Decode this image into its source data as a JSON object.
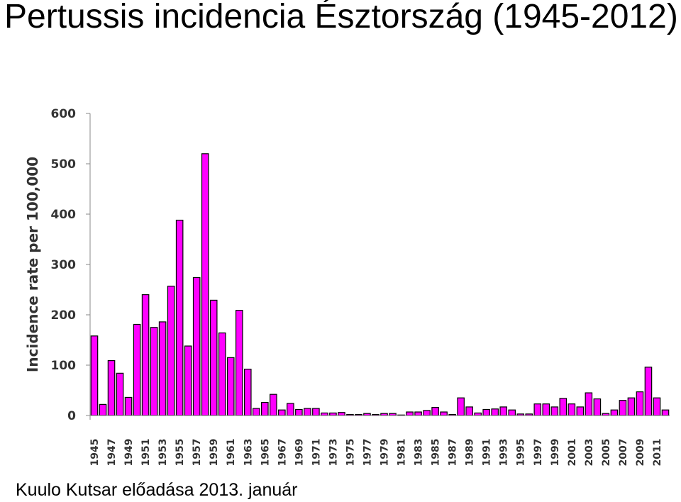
{
  "title": "Pertussis incidencia Észtország (1945-2012)",
  "caption": "Kuulo Kutsar előadása 2013. január",
  "chart_data": {
    "type": "bar",
    "title": "",
    "xlabel": "",
    "ylabel": "Incidence rate per 100,000",
    "ylim": [
      0,
      600
    ],
    "yticks": [
      0,
      100,
      200,
      300,
      400,
      500,
      600
    ],
    "grid": false,
    "bar_color": "#ff00ff",
    "bar_edge": "#000000",
    "categories": [
      1945,
      1946,
      1947,
      1948,
      1949,
      1950,
      1951,
      1952,
      1953,
      1954,
      1955,
      1956,
      1957,
      1958,
      1959,
      1960,
      1961,
      1962,
      1963,
      1964,
      1965,
      1966,
      1967,
      1968,
      1969,
      1970,
      1971,
      1972,
      1973,
      1974,
      1975,
      1976,
      1977,
      1978,
      1979,
      1980,
      1981,
      1982,
      1983,
      1984,
      1985,
      1986,
      1987,
      1988,
      1989,
      1990,
      1991,
      1992,
      1993,
      1994,
      1995,
      1996,
      1997,
      1998,
      1999,
      2000,
      2001,
      2002,
      2003,
      2004,
      2005,
      2006,
      2007,
      2008,
      2009,
      2010,
      2011,
      2012
    ],
    "x_tick_labels": [
      "1945",
      "1947",
      "1949",
      "1951",
      "1953",
      "1955",
      "1957",
      "1959",
      "1961",
      "1963",
      "1965",
      "1967",
      "1969",
      "1971",
      "1973",
      "1975",
      "1977",
      "1979",
      "1981",
      "1983",
      "1985",
      "1987",
      "1989",
      "1991",
      "1993",
      "1995",
      "1997",
      "1999",
      "2001",
      "2003",
      "2005",
      "2007",
      "2009",
      "2011"
    ],
    "values": [
      158,
      22,
      109,
      84,
      36,
      181,
      240,
      175,
      186,
      257,
      388,
      138,
      274,
      520,
      229,
      164,
      115,
      209,
      92,
      14,
      26,
      42,
      11,
      24,
      12,
      14,
      14,
      5,
      5,
      6,
      2,
      2,
      4,
      2,
      4,
      4,
      1,
      7,
      7,
      10,
      16,
      7,
      2,
      35,
      17,
      5,
      12,
      13,
      17,
      11,
      3,
      3,
      23,
      23,
      17,
      34,
      23,
      17,
      45,
      33,
      4,
      11,
      30,
      35,
      47,
      96,
      35,
      11
    ]
  }
}
